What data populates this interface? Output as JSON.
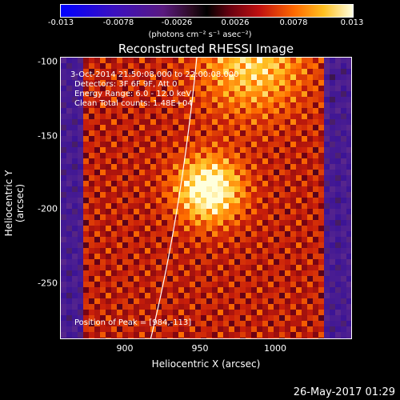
{
  "colorbar": {
    "ticks": [
      "-0.013",
      "-0.0078",
      "-0.0026",
      "0.0026",
      "0.0078",
      "0.013"
    ],
    "unit_label": "(photons cm⁻² s⁻¹ asec⁻²)"
  },
  "plot": {
    "title": "Reconstructed RHESSI Image",
    "annotations": {
      "line1": "3-Oct-2014 21:50:08.000 to 22:00:08.000",
      "line2": "Detectors: 3F 6F 9F, Att 0",
      "line3": "Energy Range: 6.0 - 12.0 keV",
      "line4": "Clean    Total counts: 1.48E+04",
      "peak": "Position of Peak = [984,-113]"
    },
    "xlabel": "Heliocentric X (arcsec)",
    "ylabel": "Heliocentric Y (arcsec)",
    "xticks": [
      "900",
      "950",
      "1000"
    ],
    "yticks": [
      "-100",
      "-150",
      "-200",
      "-250"
    ]
  },
  "footer": {
    "timestamp": "26-May-2017 01:29"
  },
  "colors": {
    "background": "#000000",
    "frame": "#ffffff",
    "limb": "#ffffff"
  }
}
